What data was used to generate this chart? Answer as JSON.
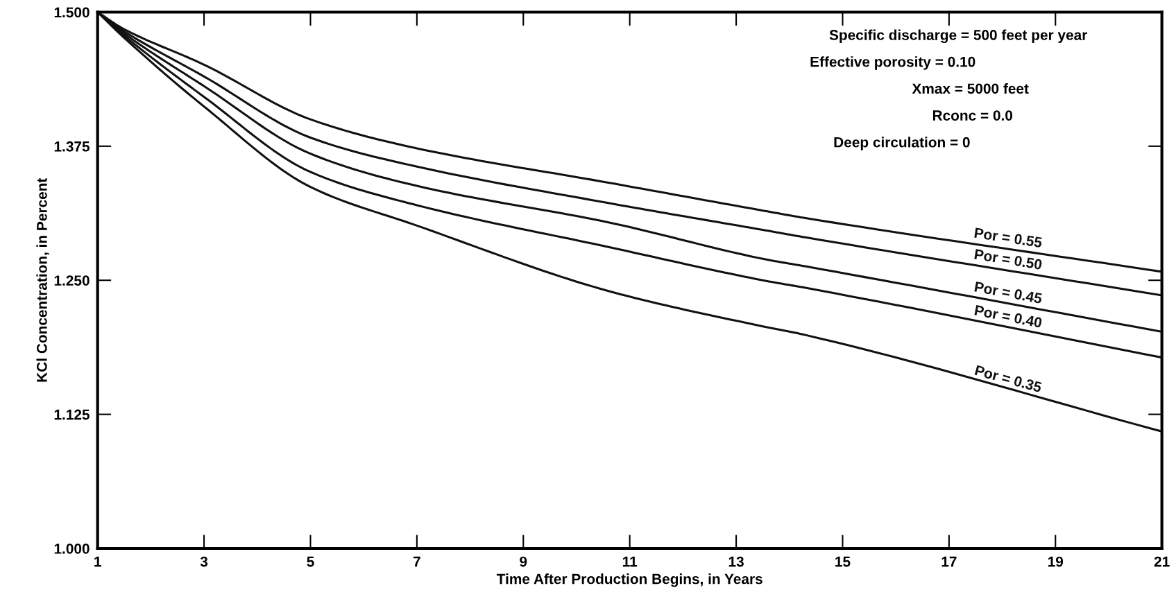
{
  "chart_data": {
    "type": "line",
    "xlabel": "Time After Production Begins, in Years",
    "ylabel": "KCl Concentration, in Percent",
    "x": [
      1,
      1.5,
      3,
      5,
      7,
      10.6,
      13.5,
      14.3,
      21
    ],
    "series": [
      {
        "name": "Por = 0.55",
        "color": "#111111",
        "values": [
          1.5,
          1.484,
          1.451,
          1.4,
          1.373,
          1.341,
          1.315,
          1.308,
          1.258
        ]
      },
      {
        "name": "Por = 0.50",
        "color": "#111111",
        "values": [
          1.5,
          1.482,
          1.44,
          1.383,
          1.356,
          1.322,
          1.297,
          1.29,
          1.236
        ]
      },
      {
        "name": "Por = 0.45",
        "color": "#111111",
        "values": [
          1.5,
          1.48,
          1.431,
          1.368,
          1.338,
          1.304,
          1.27,
          1.263,
          1.202
        ]
      },
      {
        "name": "Por = 0.40",
        "color": "#111111",
        "values": [
          1.5,
          1.478,
          1.421,
          1.351,
          1.32,
          1.281,
          1.25,
          1.243,
          1.178
        ]
      },
      {
        "name": "Por = 0.35",
        "color": "#111111",
        "values": [
          1.5,
          1.476,
          1.412,
          1.337,
          1.301,
          1.24,
          1.207,
          1.199,
          1.109
        ]
      }
    ],
    "xlim": [
      1,
      21
    ],
    "xticks": [
      1,
      3,
      5,
      7,
      9,
      11,
      13,
      15,
      17,
      19,
      21
    ],
    "ylim": [
      1.0,
      1.5
    ],
    "yticks": [
      {
        "value": 1.0,
        "label": "1.000"
      },
      {
        "value": 1.125,
        "label": "1.125"
      },
      {
        "value": 1.25,
        "label": "1.250"
      },
      {
        "value": 1.375,
        "label": "1.375"
      },
      {
        "value": 1.5,
        "label": "1.500"
      }
    ],
    "annotations": [
      "Specific discharge = 500 feet per year",
      "Effective porosity = 0.10",
      "Xmax = 5000 feet",
      "Rconc = 0.0",
      "Deep circulation = 0"
    ],
    "grid": false,
    "legend": false,
    "marker": "none",
    "line_style": "solid"
  }
}
